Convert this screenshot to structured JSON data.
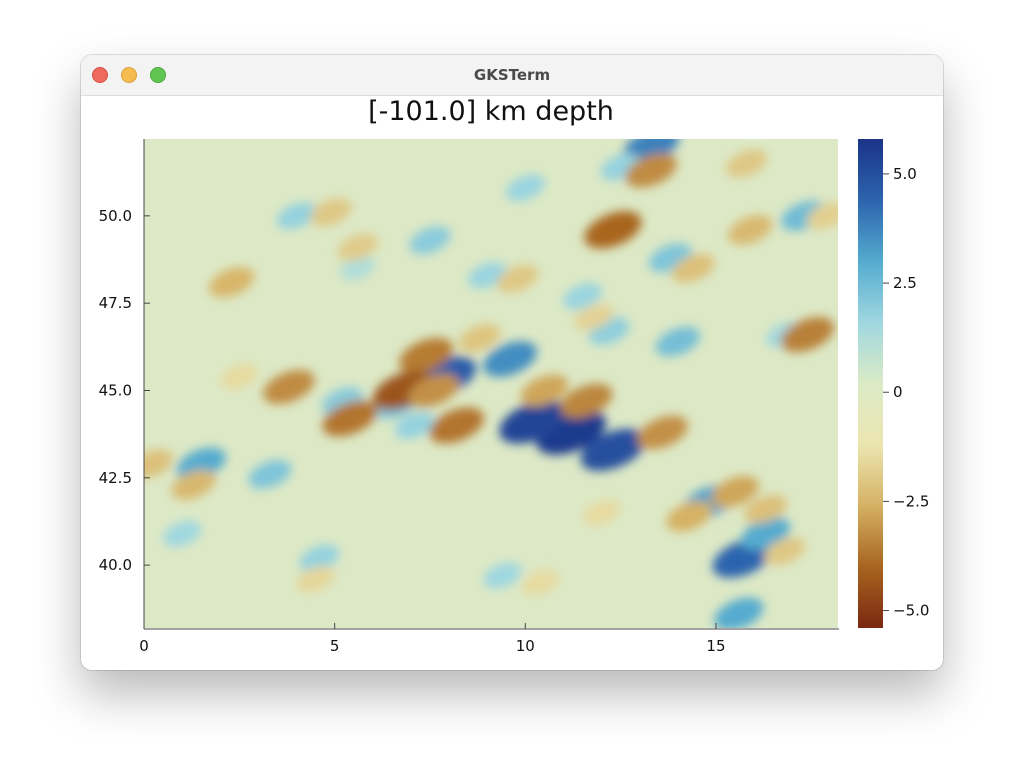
{
  "window": {
    "title": "GKSTerm"
  },
  "chart_data": {
    "type": "heatmap",
    "title": "[-101.0] km depth",
    "xlabel": "",
    "ylabel": "",
    "xlim": [
      0,
      18.2
    ],
    "ylim": [
      38.2,
      52.2
    ],
    "x_ticks": [
      "0",
      "5",
      "10",
      "15"
    ],
    "x_tick_values": [
      0,
      5,
      10,
      15
    ],
    "y_ticks": [
      "40.0",
      "42.5",
      "45.0",
      "47.5",
      "50.0"
    ],
    "y_tick_values": [
      40.0,
      42.5,
      45.0,
      47.5,
      50.0
    ],
    "colorbar": {
      "min": -5.4,
      "max": 5.8,
      "ticks": [
        "5.0",
        "2.5",
        "0",
        "−2.5",
        "−5.0"
      ],
      "tick_values": [
        5.0,
        2.5,
        0,
        -2.5,
        -5.0
      ],
      "colors": [
        "#7a2812",
        "#a8651f",
        "#d5b164",
        "#ebe5b0",
        "#dcebc6",
        "#9fd7e0",
        "#54abcf",
        "#2c64ae",
        "#1b3388"
      ]
    },
    "grid": false,
    "background_color": "#dde9c6",
    "anomalies": [
      {
        "x": 11.2,
        "y": 43.8,
        "value": 5.6
      },
      {
        "x": 10.2,
        "y": 44.1,
        "value": 5.3
      },
      {
        "x": 12.3,
        "y": 43.3,
        "value": 5.0
      },
      {
        "x": 7.9,
        "y": 45.4,
        "value": 4.6
      },
      {
        "x": 9.6,
        "y": 45.9,
        "value": 3.6
      },
      {
        "x": 13.3,
        "y": 52.0,
        "value": 3.8
      },
      {
        "x": 15.7,
        "y": 40.2,
        "value": 4.4
      },
      {
        "x": 14.8,
        "y": 41.8,
        "value": 3.2
      },
      {
        "x": 16.3,
        "y": 40.9,
        "value": 3.0
      },
      {
        "x": 15.6,
        "y": 38.6,
        "value": 3.0
      },
      {
        "x": 13.8,
        "y": 48.8,
        "value": 2.2
      },
      {
        "x": 1.5,
        "y": 42.9,
        "value": 3.0
      },
      {
        "x": 3.3,
        "y": 42.6,
        "value": 2.2
      },
      {
        "x": 17.3,
        "y": 50.0,
        "value": 2.5
      },
      {
        "x": 14.0,
        "y": 46.4,
        "value": 2.4
      },
      {
        "x": 12.2,
        "y": 46.7,
        "value": 1.9
      },
      {
        "x": 7.5,
        "y": 49.3,
        "value": 2.0
      },
      {
        "x": 10.0,
        "y": 50.8,
        "value": 1.7
      },
      {
        "x": 12.5,
        "y": 51.4,
        "value": 1.8
      },
      {
        "x": 5.2,
        "y": 44.7,
        "value": 2.0
      },
      {
        "x": 4.0,
        "y": 50.0,
        "value": 1.8
      },
      {
        "x": 1.0,
        "y": 40.9,
        "value": 1.6
      },
      {
        "x": 4.6,
        "y": 40.2,
        "value": 1.8
      },
      {
        "x": 9.4,
        "y": 39.7,
        "value": 1.6
      },
      {
        "x": 6.6,
        "y": 44.6,
        "value": 2.2
      },
      {
        "x": 7.1,
        "y": 44.0,
        "value": 1.8
      },
      {
        "x": 11.5,
        "y": 47.7,
        "value": 1.7
      },
      {
        "x": 9.0,
        "y": 48.3,
        "value": 1.7
      },
      {
        "x": 16.8,
        "y": 46.6,
        "value": 1.5
      },
      {
        "x": 5.6,
        "y": 48.5,
        "value": 1.2
      },
      {
        "x": 7.4,
        "y": 46.0,
        "value": -3.6
      },
      {
        "x": 6.8,
        "y": 45.0,
        "value": -4.4
      },
      {
        "x": 7.6,
        "y": 45.0,
        "value": -3.2
      },
      {
        "x": 8.2,
        "y": 44.0,
        "value": -3.7
      },
      {
        "x": 5.4,
        "y": 44.2,
        "value": -3.7
      },
      {
        "x": 3.8,
        "y": 45.1,
        "value": -3.3
      },
      {
        "x": 11.6,
        "y": 44.7,
        "value": -3.4
      },
      {
        "x": 10.5,
        "y": 45.0,
        "value": -2.8
      },
      {
        "x": 13.6,
        "y": 43.8,
        "value": -3.2
      },
      {
        "x": 12.3,
        "y": 49.6,
        "value": -4.0
      },
      {
        "x": 13.3,
        "y": 51.3,
        "value": -3.3
      },
      {
        "x": 17.4,
        "y": 46.6,
        "value": -3.5
      },
      {
        "x": 15.5,
        "y": 42.1,
        "value": -2.8
      },
      {
        "x": 14.3,
        "y": 41.4,
        "value": -2.6
      },
      {
        "x": 16.3,
        "y": 41.6,
        "value": -2.2
      },
      {
        "x": 1.3,
        "y": 42.3,
        "value": -2.4
      },
      {
        "x": 0.2,
        "y": 42.9,
        "value": -2.2
      },
      {
        "x": 2.3,
        "y": 48.1,
        "value": -2.5
      },
      {
        "x": 4.9,
        "y": 50.1,
        "value": -2.0
      },
      {
        "x": 5.6,
        "y": 49.1,
        "value": -1.9
      },
      {
        "x": 9.8,
        "y": 48.2,
        "value": -2.0
      },
      {
        "x": 14.4,
        "y": 48.5,
        "value": -2.2
      },
      {
        "x": 15.8,
        "y": 51.5,
        "value": -2.0
      },
      {
        "x": 4.5,
        "y": 39.6,
        "value": -1.6
      },
      {
        "x": 10.4,
        "y": 39.5,
        "value": -1.5
      },
      {
        "x": 12.0,
        "y": 41.5,
        "value": -1.5
      },
      {
        "x": 15.9,
        "y": 49.6,
        "value": -2.4
      },
      {
        "x": 17.9,
        "y": 50.0,
        "value": -1.8
      },
      {
        "x": 16.8,
        "y": 40.4,
        "value": -2.0
      },
      {
        "x": 8.8,
        "y": 46.5,
        "value": -2.1
      },
      {
        "x": 11.8,
        "y": 47.1,
        "value": -1.7
      },
      {
        "x": 2.5,
        "y": 45.4,
        "value": -1.5
      }
    ]
  }
}
